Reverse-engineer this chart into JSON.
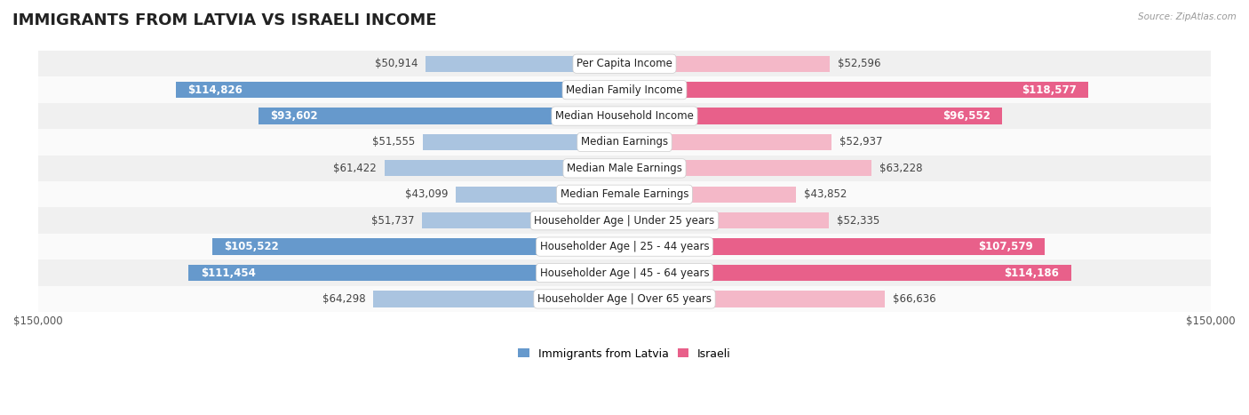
{
  "title": "IMMIGRANTS FROM LATVIA VS ISRAELI INCOME",
  "source": "Source: ZipAtlas.com",
  "categories": [
    "Per Capita Income",
    "Median Family Income",
    "Median Household Income",
    "Median Earnings",
    "Median Male Earnings",
    "Median Female Earnings",
    "Householder Age | Under 25 years",
    "Householder Age | 25 - 44 years",
    "Householder Age | 45 - 64 years",
    "Householder Age | Over 65 years"
  ],
  "latvia_values": [
    50914,
    114826,
    93602,
    51555,
    61422,
    43099,
    51737,
    105522,
    111454,
    64298
  ],
  "israeli_values": [
    52596,
    118577,
    96552,
    52937,
    63228,
    43852,
    52335,
    107579,
    114186,
    66636
  ],
  "latvia_labels": [
    "$50,914",
    "$114,826",
    "$93,602",
    "$51,555",
    "$61,422",
    "$43,099",
    "$51,737",
    "$105,522",
    "$111,454",
    "$64,298"
  ],
  "israeli_labels": [
    "$52,596",
    "$118,577",
    "$96,552",
    "$52,937",
    "$63,228",
    "$43,852",
    "$52,335",
    "$107,579",
    "$114,186",
    "$66,636"
  ],
  "max_value": 150000,
  "latvia_color_light": "#aac4e0",
  "latvia_color_dark": "#6699cc",
  "israeli_color_light": "#f4b8c8",
  "israeli_color_dark": "#e8608a",
  "row_colors": [
    "#f0f0f0",
    "#fafafa"
  ],
  "bar_height": 0.62,
  "title_fontsize": 13,
  "label_fontsize": 8.5,
  "category_fontsize": 8.5,
  "axis_label_fontsize": 8.5,
  "legend_fontsize": 9,
  "inside_threshold": 80000
}
